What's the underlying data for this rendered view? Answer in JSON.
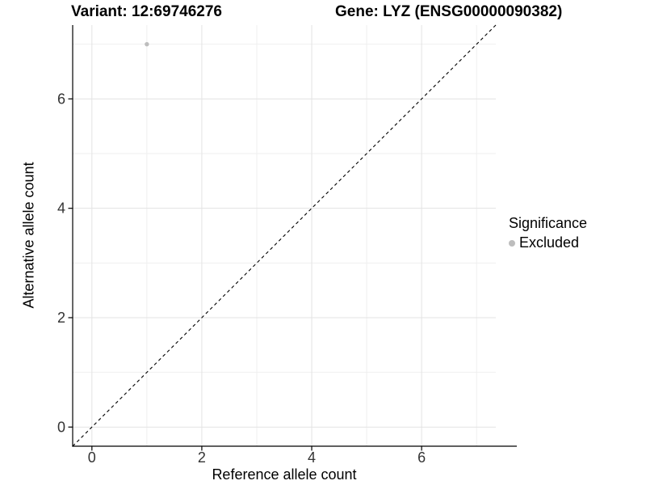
{
  "header": {
    "left_title": "Variant: 12:69746276",
    "right_title": "Gene: LYZ (ENSG00000090382)"
  },
  "chart_data": {
    "type": "scatter",
    "title": "Variant: 12:69746276 | Gene: LYZ (ENSG00000090382)",
    "xlabel": "Reference allele count",
    "ylabel": "Alternative allele count",
    "xlim": [
      -0.35,
      7.35
    ],
    "ylim": [
      -0.35,
      7.35
    ],
    "x_major_ticks": [
      0,
      2,
      4,
      6
    ],
    "y_major_ticks": [
      0,
      2,
      4,
      6
    ],
    "x_minor_gridlines": [
      1,
      3,
      5,
      7
    ],
    "y_minor_gridlines": [
      1,
      3,
      5,
      7
    ],
    "grid": "on",
    "identity_line": {
      "slope": 1,
      "intercept": 0,
      "style": "dashed",
      "color": "#000000"
    },
    "series": [
      {
        "name": "Excluded",
        "color": "#bdbdbd",
        "points": [
          {
            "x": 1,
            "y": 7
          }
        ]
      }
    ],
    "legend": {
      "title": "Significance",
      "position": "right",
      "items": [
        {
          "label": "Excluded",
          "color": "#bdbdbd",
          "marker": "dot-icon"
        }
      ]
    }
  },
  "colors": {
    "background": "#ffffff",
    "grid_major": "#e3e3e3",
    "grid_minor": "#efefef",
    "axis": "#000000",
    "tick_label": "#333333",
    "point": "#bdbdbd"
  }
}
